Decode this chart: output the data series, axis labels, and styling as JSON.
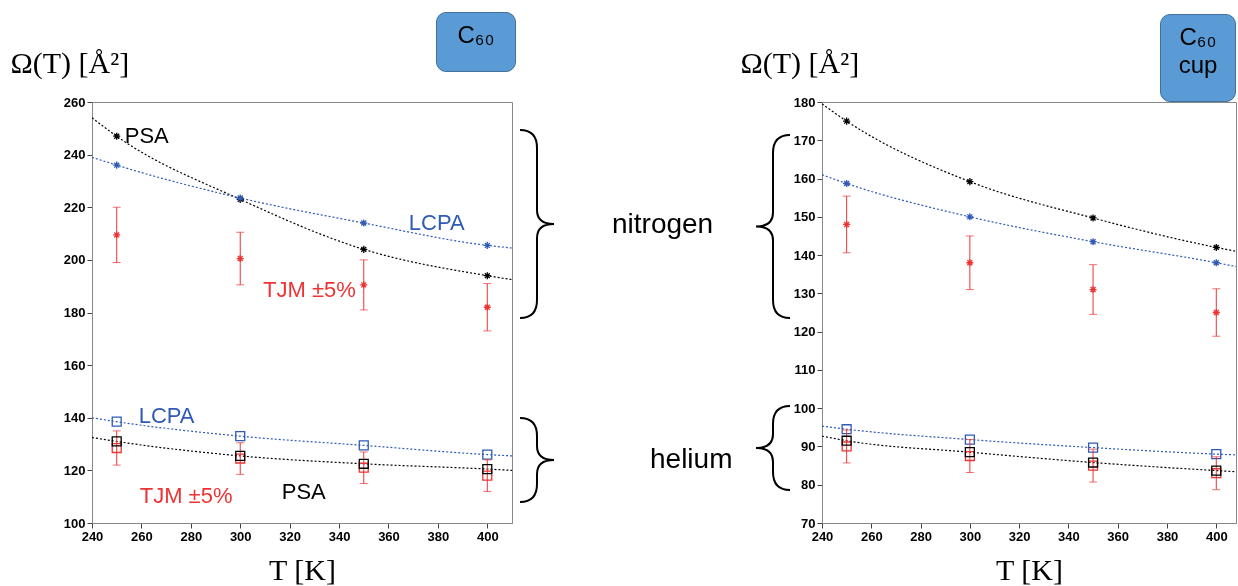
{
  "chart_data": [
    {
      "type": "scatter",
      "title": "C₆₀",
      "xlabel": "T [K]",
      "ylabel": "Ω(T) [Å²]",
      "xlim": [
        240,
        410
      ],
      "ylim": [
        100,
        260
      ],
      "xticks": [
        240,
        260,
        280,
        300,
        320,
        340,
        360,
        380,
        400
      ],
      "yticks": [
        100,
        120,
        140,
        160,
        180,
        200,
        220,
        240,
        260
      ],
      "x": [
        250,
        300,
        350,
        400
      ],
      "annotations": [
        "nitrogen",
        "helium"
      ],
      "series": [
        {
          "type": "line",
          "color": "#000000",
          "line_style": "dotted",
          "marker": "none",
          "x": [
            240,
            250,
            300,
            350,
            400,
            410
          ],
          "values": [
            254,
            247,
            223,
            204,
            194,
            192.5
          ]
        },
        {
          "type": "line",
          "color": "#2f5ab5",
          "line_style": "dotted",
          "marker": "none",
          "x": [
            240,
            250,
            300,
            350,
            400,
            410
          ],
          "values": [
            239,
            236,
            223.5,
            214,
            205.5,
            204.5
          ]
        },
        {
          "type": "line",
          "color": "#2f5ab5",
          "line_style": "dotted",
          "marker": "none",
          "x": [
            240,
            250,
            300,
            350,
            400,
            410
          ],
          "values": [
            140,
            138.5,
            133,
            129.5,
            126,
            125.5
          ]
        },
        {
          "type": "line",
          "color": "#000000",
          "line_style": "dotted",
          "marker": "none",
          "x": [
            240,
            250,
            300,
            350,
            400,
            410
          ],
          "values": [
            132.5,
            131,
            125.5,
            122.5,
            120.5,
            120
          ]
        },
        {
          "name": "PSA",
          "color": "#000000",
          "marker": "cross",
          "values": [
            247,
            223,
            204,
            194
          ]
        },
        {
          "name": "LCPA",
          "color": "#2f5ab5",
          "marker": "cross",
          "values": [
            236,
            223.5,
            214,
            205.5
          ]
        },
        {
          "name": "TJM ±5%",
          "color": "#ee3333",
          "marker": "cross",
          "values": [
            209.5,
            200.5,
            190.5,
            182
          ],
          "errors": [
            10.5,
            10,
            9.5,
            9
          ]
        },
        {
          "name": "LCPA",
          "color": "#2f5ab5",
          "marker": "square",
          "values": [
            138.5,
            133,
            129.5,
            126
          ]
        },
        {
          "name": "TJM ±5%",
          "color": "#ee3333",
          "marker": "square",
          "values": [
            128.5,
            124.5,
            121,
            118
          ],
          "errors": [
            6.5,
            6,
            6,
            6
          ]
        },
        {
          "name": "PSA",
          "color": "#000000",
          "marker": "square",
          "values": [
            131,
            125.5,
            122.5,
            120.5
          ]
        }
      ]
    },
    {
      "type": "scatter",
      "title": "C₆₀ cup",
      "xlabel": "T [K]",
      "ylabel": "Ω(T) [Å²]",
      "xlim": [
        240,
        408
      ],
      "ylim": [
        70,
        180
      ],
      "xticks": [
        240,
        260,
        280,
        300,
        320,
        340,
        360,
        380,
        400
      ],
      "yticks": [
        70,
        80,
        90,
        100,
        110,
        120,
        130,
        140,
        150,
        160,
        170,
        180
      ],
      "x": [
        250,
        300,
        350,
        400
      ],
      "series": [
        {
          "type": "line",
          "color": "#000000",
          "line_style": "dotted",
          "marker": "none",
          "x": [
            240,
            250,
            300,
            350,
            400,
            408
          ],
          "values": [
            179.5,
            175,
            159.2,
            149.7,
            142,
            141
          ]
        },
        {
          "type": "line",
          "color": "#2f5ab5",
          "line_style": "dotted",
          "marker": "none",
          "x": [
            240,
            250,
            300,
            350,
            400,
            408
          ],
          "values": [
            161,
            158.7,
            150,
            143.5,
            138,
            137
          ]
        },
        {
          "type": "line",
          "color": "#2f5ab5",
          "line_style": "dotted",
          "marker": "none",
          "x": [
            240,
            250,
            300,
            350,
            400,
            408
          ],
          "values": [
            95.3,
            94.5,
            91.8,
            89.7,
            88,
            87.8
          ]
        },
        {
          "type": "line",
          "color": "#000000",
          "line_style": "dotted",
          "marker": "none",
          "x": [
            240,
            250,
            300,
            350,
            400,
            408
          ],
          "values": [
            92.7,
            91.5,
            88.5,
            85.8,
            83.7,
            83.4
          ]
        },
        {
          "color": "#000000",
          "marker": "cross",
          "values": [
            175,
            159.2,
            149.7,
            142
          ]
        },
        {
          "color": "#2f5ab5",
          "marker": "cross",
          "values": [
            158.7,
            150,
            143.5,
            138
          ]
        },
        {
          "color": "#ee3333",
          "marker": "cross",
          "values": [
            148,
            138,
            131,
            125
          ],
          "errors": [
            7.4,
            7,
            6.5,
            6.2
          ]
        },
        {
          "color": "#2f5ab5",
          "marker": "square",
          "values": [
            94.5,
            91.8,
            89.7,
            88
          ]
        },
        {
          "color": "#ee3333",
          "marker": "square",
          "values": [
            90,
            87.5,
            85,
            83
          ],
          "errors": [
            4.3,
            4.3,
            4.3,
            4.3
          ]
        },
        {
          "color": "#000000",
          "marker": "square",
          "values": [
            91.5,
            88.5,
            85.8,
            83.7
          ]
        }
      ]
    }
  ]
}
